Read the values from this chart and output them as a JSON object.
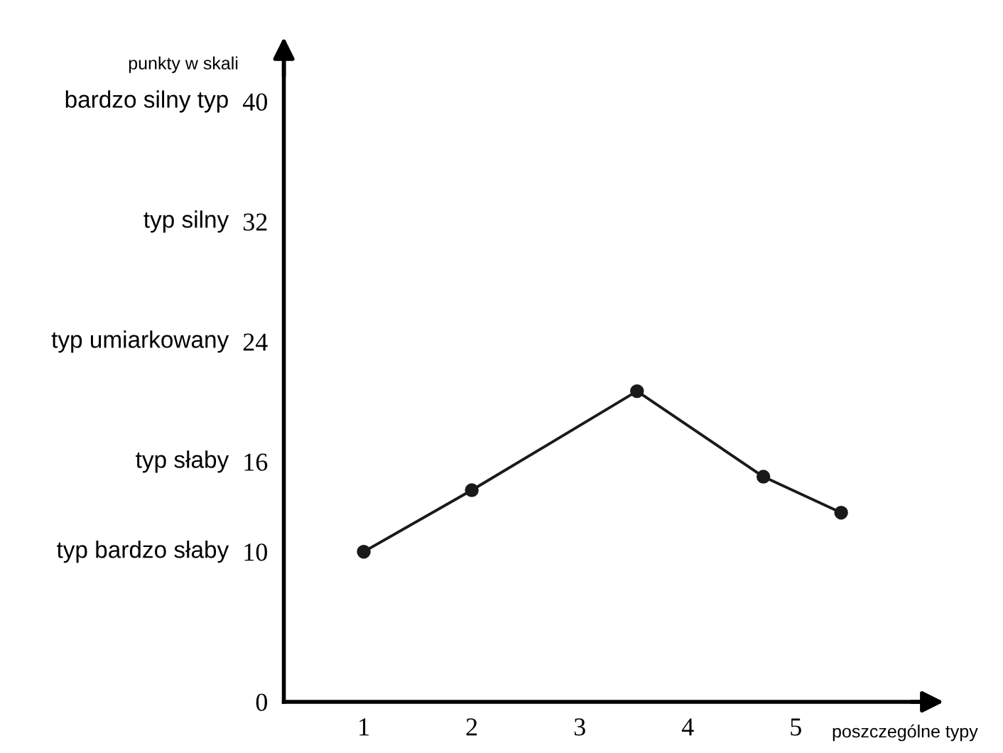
{
  "chart_data": {
    "type": "line",
    "ylabel": "punkty w skali",
    "xlabel": "poszczególne typy",
    "x": [
      1,
      2,
      3.53,
      4.7,
      5.42
    ],
    "series": [
      {
        "color": "#1a1a1a",
        "values": [
          10,
          14.1,
          20.7,
          15,
          12.6
        ]
      }
    ],
    "xlim": [
      0.26,
      6.25
    ],
    "ylim": [
      0,
      43
    ],
    "xticks": [
      1,
      2,
      3,
      4,
      5
    ],
    "yticks": [
      0,
      10,
      16,
      24,
      32,
      40
    ],
    "annotations": [
      "typ bardzo słaby",
      "typ słaby",
      "typ umiarkowany",
      "typ silny",
      "bardzo silny typ"
    ],
    "marker": "circle",
    "line_style": "solid",
    "grid": false,
    "legend": false
  }
}
